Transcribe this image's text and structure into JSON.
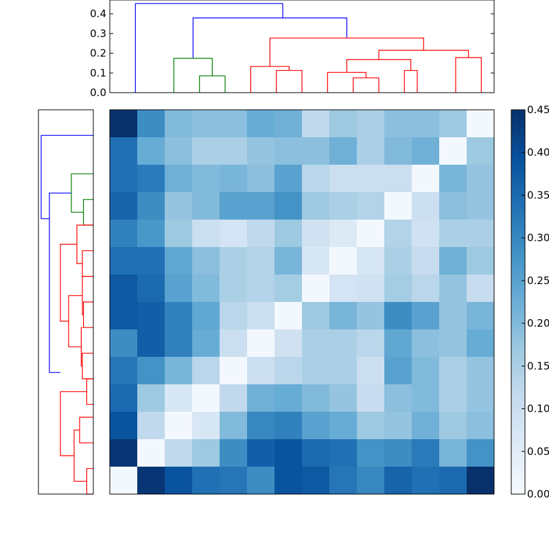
{
  "chart_data": [
    {
      "type": "dendrogram",
      "orientation": "top",
      "ylim": [
        0,
        0.47
      ],
      "yticks": [
        "0.0",
        "0.1",
        "0.2",
        "0.3",
        "0.4"
      ],
      "ytick_values": [
        0,
        0.1,
        0.2,
        0.3,
        0.4
      ],
      "link_colors": {
        "blue": "#0000ff",
        "green": "#008000",
        "red": "#ff0000"
      },
      "links": [
        {
          "xs": [
            1,
            1,
            6.75,
            6.75
          ],
          "ys": [
            0,
            0.452,
            0.452,
            0.379
          ],
          "color": "blue"
        },
        {
          "xs": [
            3.25,
            3.25,
            9.25,
            9.25
          ],
          "ys": [
            0.174,
            0.379,
            0.379,
            0.277
          ],
          "color": "blue"
        },
        {
          "xs": [
            2.5,
            2.5,
            4,
            4
          ],
          "ys": [
            0,
            0.174,
            0.174,
            0.085
          ],
          "color": "green"
        },
        {
          "xs": [
            3.5,
            3.5,
            4.5,
            4.5
          ],
          "ys": [
            0,
            0.085,
            0.085,
            0
          ],
          "color": "green"
        },
        {
          "xs": [
            6.25,
            6.25,
            12.25,
            12.25
          ],
          "ys": [
            0.133,
            0.277,
            0.277,
            0.215
          ],
          "color": "red"
        },
        {
          "xs": [
            5.5,
            5.5,
            7,
            7
          ],
          "ys": [
            0,
            0.133,
            0.133,
            0.113
          ],
          "color": "red"
        },
        {
          "xs": [
            6.5,
            6.5,
            7.5,
            7.5
          ],
          "ys": [
            0,
            0.113,
            0.113,
            0
          ],
          "color": "red"
        },
        {
          "xs": [
            10.5,
            10.5,
            14,
            14
          ],
          "ys": [
            0.168,
            0.215,
            0.215,
            0.178
          ],
          "color": "red"
        },
        {
          "xs": [
            9.25,
            9.25,
            11.75,
            11.75
          ],
          "ys": [
            0.103,
            0.168,
            0.168,
            0.113
          ],
          "color": "red"
        },
        {
          "xs": [
            8.5,
            8.5,
            10,
            10
          ],
          "ys": [
            0,
            0.103,
            0.103,
            0.075
          ],
          "color": "red"
        },
        {
          "xs": [
            9.5,
            9.5,
            10.5,
            10.5
          ],
          "ys": [
            0,
            0.075,
            0.075,
            0
          ],
          "color": "red"
        },
        {
          "xs": [
            11.5,
            11.5,
            12,
            12
          ],
          "ys": [
            0,
            0.113,
            0.113,
            0
          ],
          "color": "red"
        },
        {
          "xs": [
            13.5,
            13.5,
            14.5,
            14.5
          ],
          "ys": [
            0,
            0.178,
            0.178,
            0
          ],
          "color": "red"
        }
      ]
    },
    {
      "type": "dendrogram",
      "orientation": "left",
      "link_colors": {
        "blue": "#0000ff",
        "green": "#008000",
        "red": "#ff0000"
      },
      "links": [
        {
          "ys": [
            1,
            1,
            4.25,
            4.25
          ],
          "xs": [
            0,
            0.95,
            0.95,
            0.8
          ],
          "color": "blue"
        },
        {
          "ys": [
            3.25,
            3.25,
            10.25,
            10.25
          ],
          "xs": [
            0.4,
            0.8,
            0.8,
            0.6
          ],
          "color": "blue"
        },
        {
          "ys": [
            2.5,
            2.5,
            4,
            4
          ],
          "xs": [
            0,
            0.4,
            0.4,
            0.18
          ],
          "color": "green"
        },
        {
          "ys": [
            3.5,
            3.5,
            4.5,
            4.5
          ],
          "xs": [
            0,
            0.18,
            0.18,
            0
          ],
          "color": "green"
        },
        {
          "ys": [
            5.25,
            5.25,
            8.25,
            8.25
          ],
          "xs": [
            0.3,
            0.6,
            0.6,
            0.45
          ],
          "color": "red"
        },
        {
          "ys": [
            4.5,
            4.5,
            6,
            6
          ],
          "xs": [
            0,
            0.3,
            0.3,
            0.2
          ],
          "color": "red"
        },
        {
          "ys": [
            5.5,
            5.5,
            6.5,
            6.5
          ],
          "xs": [
            0,
            0.2,
            0.2,
            0
          ],
          "color": "red"
        },
        {
          "ys": [
            7.25,
            7.25,
            9.25,
            9.25
          ],
          "xs": [
            0.2,
            0.45,
            0.45,
            0.22
          ],
          "color": "red"
        },
        {
          "ys": [
            6.5,
            6.5,
            8,
            8
          ],
          "xs": [
            0,
            0.2,
            0.2,
            0.18
          ],
          "color": "red"
        },
        {
          "ys": [
            7.5,
            7.5,
            8.5,
            8.5
          ],
          "xs": [
            0,
            0.18,
            0.18,
            0
          ],
          "color": "red"
        },
        {
          "ys": [
            8.5,
            8.5,
            10,
            10
          ],
          "xs": [
            0.2,
            0.22,
            0.22,
            0.2
          ],
          "color": "red"
        },
        {
          "ys": [
            9.5,
            9.5,
            10.5,
            10.5
          ],
          "xs": [
            0,
            0.2,
            0.2,
            0
          ],
          "color": "red"
        },
        {
          "ys": [
            11,
            11,
            13.5,
            13.5
          ],
          "xs": [
            0.12,
            0.6,
            0.6,
            0.35
          ],
          "color": "red"
        },
        {
          "ys": [
            10.5,
            10.5,
            11.5,
            11.5
          ],
          "xs": [
            0,
            0.12,
            0.12,
            0
          ],
          "color": "red"
        },
        {
          "ys": [
            12.5,
            12.5,
            14.5,
            14.5
          ],
          "xs": [
            0.25,
            0.35,
            0.35,
            0.12
          ],
          "color": "red"
        },
        {
          "ys": [
            12,
            12,
            13,
            13
          ],
          "xs": [
            0,
            0.25,
            0.25,
            0
          ],
          "color": "red"
        },
        {
          "ys": [
            14,
            14,
            15,
            15
          ],
          "xs": [
            0,
            0.12,
            0.12,
            0
          ],
          "color": "red"
        }
      ]
    },
    {
      "type": "heatmap",
      "rows": 14,
      "cols": 14,
      "colormap": "Blues",
      "colormap_stops": [
        "#f7fbff",
        "#deebf7",
        "#c6dbef",
        "#9ecae1",
        "#6baed6",
        "#4292c6",
        "#2171b5",
        "#08519c",
        "#08306b"
      ],
      "vmin": 0,
      "vmax": 0.45,
      "values": [
        [
          0.45,
          0.29,
          0.2,
          0.19,
          0.19,
          0.23,
          0.22,
          0.12,
          0.17,
          0.15,
          0.19,
          0.19,
          0.17,
          0.01
        ],
        [
          0.34,
          0.23,
          0.19,
          0.15,
          0.15,
          0.18,
          0.19,
          0.19,
          0.22,
          0.15,
          0.2,
          0.22,
          0.01,
          0.17
        ],
        [
          0.34,
          0.32,
          0.22,
          0.2,
          0.21,
          0.19,
          0.25,
          0.13,
          0.1,
          0.1,
          0.1,
          0.01,
          0.21,
          0.18
        ],
        [
          0.36,
          0.29,
          0.18,
          0.2,
          0.25,
          0.25,
          0.28,
          0.17,
          0.15,
          0.14,
          0.01,
          0.1,
          0.19,
          0.18
        ],
        [
          0.31,
          0.27,
          0.17,
          0.1,
          0.08,
          0.12,
          0.17,
          0.09,
          0.06,
          0.01,
          0.14,
          0.09,
          0.15,
          0.15
        ],
        [
          0.34,
          0.34,
          0.24,
          0.19,
          0.15,
          0.14,
          0.21,
          0.07,
          0.01,
          0.07,
          0.15,
          0.11,
          0.22,
          0.17
        ],
        [
          0.38,
          0.35,
          0.25,
          0.2,
          0.15,
          0.14,
          0.16,
          0.01,
          0.08,
          0.09,
          0.16,
          0.13,
          0.18,
          0.11
        ],
        [
          0.38,
          0.37,
          0.31,
          0.24,
          0.13,
          0.1,
          0.01,
          0.17,
          0.21,
          0.18,
          0.29,
          0.25,
          0.18,
          0.21
        ],
        [
          0.29,
          0.37,
          0.31,
          0.23,
          0.1,
          0.01,
          0.09,
          0.15,
          0.15,
          0.13,
          0.24,
          0.19,
          0.18,
          0.23
        ],
        [
          0.33,
          0.28,
          0.21,
          0.13,
          0.01,
          0.1,
          0.13,
          0.15,
          0.15,
          0.1,
          0.25,
          0.2,
          0.15,
          0.18
        ],
        [
          0.35,
          0.17,
          0.07,
          0.01,
          0.12,
          0.22,
          0.23,
          0.2,
          0.18,
          0.11,
          0.19,
          0.2,
          0.15,
          0.18
        ],
        [
          0.39,
          0.12,
          0.01,
          0.07,
          0.2,
          0.3,
          0.31,
          0.25,
          0.23,
          0.17,
          0.18,
          0.22,
          0.17,
          0.19
        ],
        [
          0.44,
          0.01,
          0.12,
          0.17,
          0.29,
          0.37,
          0.39,
          0.35,
          0.34,
          0.28,
          0.29,
          0.32,
          0.21,
          0.28
        ],
        [
          0.01,
          0.44,
          0.39,
          0.34,
          0.33,
          0.29,
          0.39,
          0.38,
          0.33,
          0.3,
          0.36,
          0.34,
          0.35,
          0.45
        ]
      ]
    },
    {
      "type": "colorbar",
      "vmin": 0,
      "vmax": 0.45,
      "ticks": [
        "0.00",
        "0.05",
        "0.10",
        "0.15",
        "0.20",
        "0.25",
        "0.30",
        "0.35",
        "0.40",
        "0.45"
      ],
      "tick_values": [
        0,
        0.05,
        0.1,
        0.15,
        0.2,
        0.25,
        0.3,
        0.35,
        0.4,
        0.45
      ]
    }
  ]
}
